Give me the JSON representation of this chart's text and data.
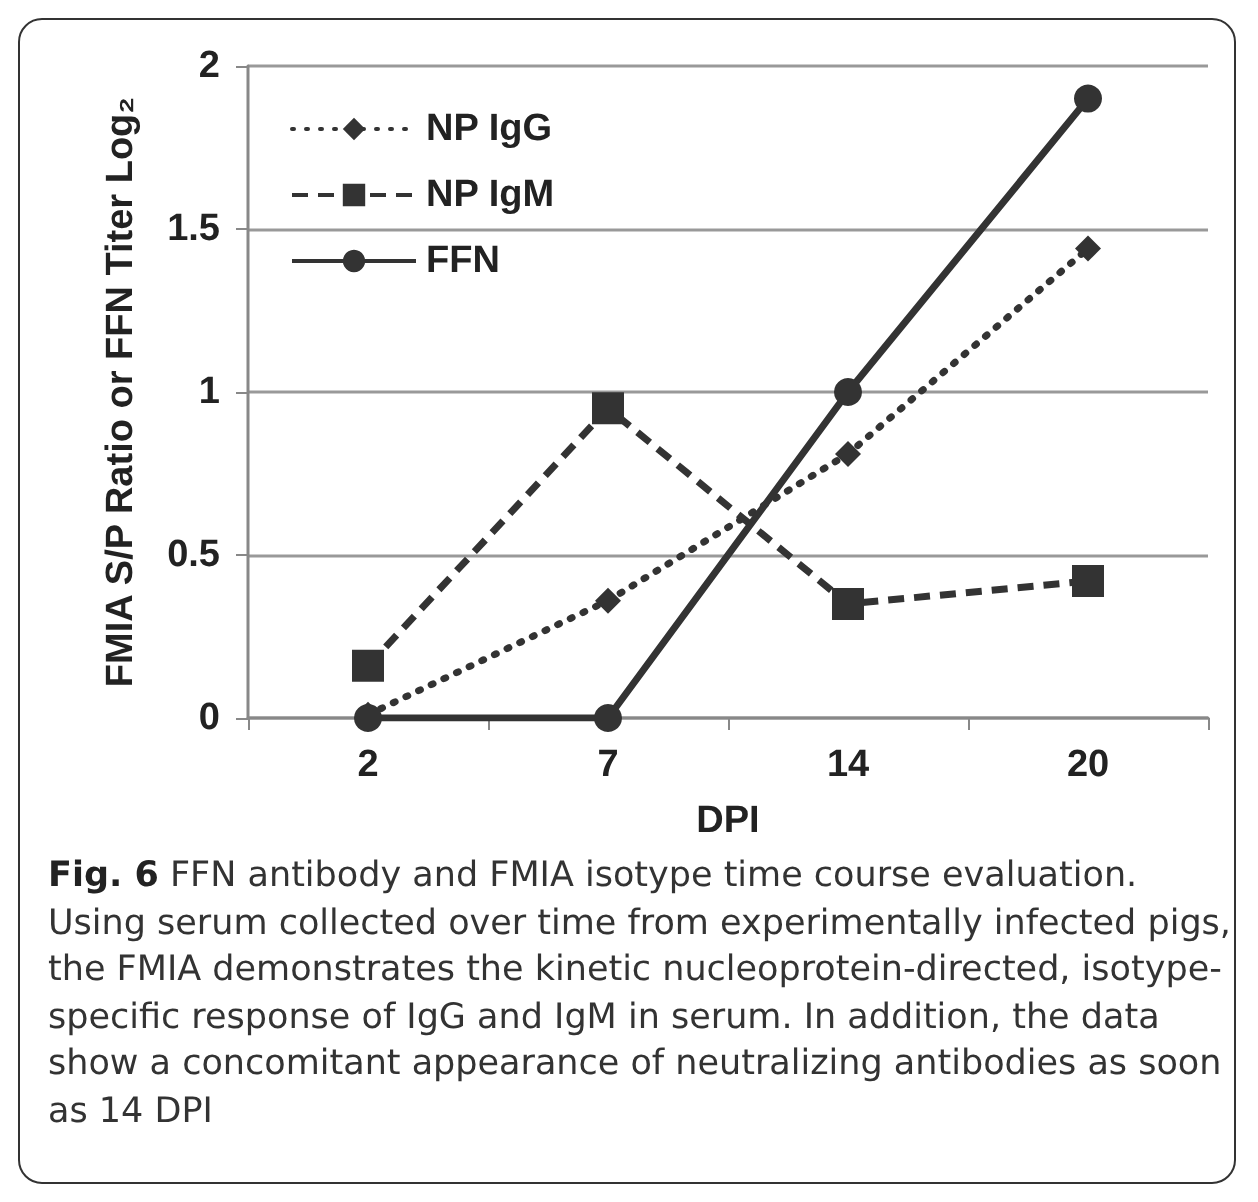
{
  "chart_data": {
    "type": "line",
    "xlabel": "DPI",
    "ylabel": "FMIA S/P Ratio or FFN Titer Log₂",
    "categories": [
      "2",
      "7",
      "14",
      "20"
    ],
    "series": [
      {
        "name": "NP IgG",
        "color": "#333333",
        "values": [
          0.01,
          0.36,
          0.81,
          1.44
        ],
        "marker": "diamond",
        "line_style": "dotted"
      },
      {
        "name": "NP IgM",
        "color": "#333333",
        "values": [
          0.16,
          0.95,
          0.35,
          0.42
        ],
        "marker": "square",
        "line_style": "dashed"
      },
      {
        "name": "FFN",
        "color": "#333333",
        "values": [
          0,
          0,
          1,
          1.9
        ],
        "marker": "circle",
        "line_style": "solid"
      }
    ],
    "ylim": [
      0,
      2
    ],
    "yticks": [
      0,
      0.5,
      1,
      1.5,
      2
    ],
    "grid": "y",
    "legend": "top left",
    "annotations": [
      "Fig. 6 FFN antibody and FMIA isotype time course evaluation. Using serum collected over time from experimentally infected pigs, the FMIA demonstrates the kinetic nucleoprotein-directed, isotype-specific response of IgG and IgM in serum. In addition, the data show a concomitant appearance of neutralizing antibodies as soon as 14 DPI"
    ]
  }
}
